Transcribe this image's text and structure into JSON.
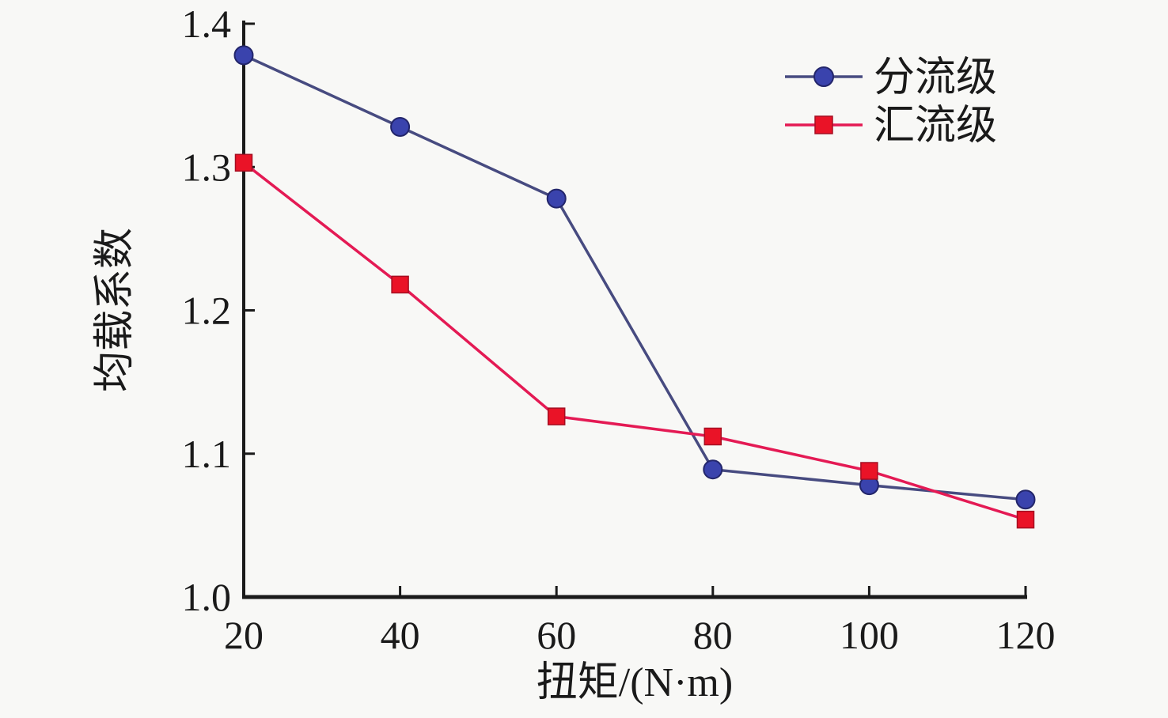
{
  "chart_data": {
    "type": "line",
    "title": "",
    "xlabel": "扭矩/(N·m)",
    "ylabel": "均载系数",
    "x": [
      20,
      40,
      60,
      80,
      100,
      120
    ],
    "xlim": [
      20,
      120
    ],
    "ylim": [
      1.0,
      1.4
    ],
    "x_tick_labels": [
      "20",
      "40",
      "60",
      "80",
      "100",
      "120"
    ],
    "y_ticks": [
      1.0,
      1.1,
      1.2,
      1.3,
      1.4
    ],
    "y_tick_labels": [
      "1.0",
      "1.1",
      "1.2",
      "1.3",
      "1.4"
    ],
    "grid": false,
    "legend_position": "top-right-inside",
    "series": [
      {
        "name": "分流级",
        "marker": "circle",
        "line_color": "#474b80",
        "marker_color": "#3a43ad",
        "marker_edge_color": "#23266b",
        "values": [
          1.378,
          1.328,
          1.278,
          1.089,
          1.078,
          1.068
        ]
      },
      {
        "name": "汇流级",
        "marker": "square",
        "line_color": "#e41a54",
        "marker_color": "#ea1327",
        "marker_edge_color": "#a50f22",
        "values": [
          1.303,
          1.218,
          1.126,
          1.112,
          1.088,
          1.054
        ]
      }
    ]
  },
  "colors": {
    "background": "#f8f8f6",
    "axis": "#1a1a1a",
    "text": "#1a1a1a"
  }
}
